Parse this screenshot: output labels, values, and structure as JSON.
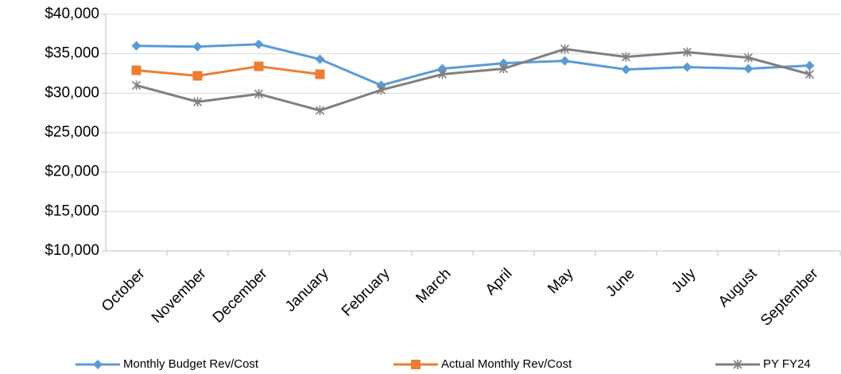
{
  "chart_data": {
    "type": "line",
    "categories": [
      "October",
      "November",
      "December",
      "January",
      "February",
      "March",
      "April",
      "May",
      "June",
      "July",
      "August",
      "September"
    ],
    "series": [
      {
        "name": "Monthly Budget Rev/Cost",
        "color": "#5b9bd5",
        "marker": "diamond",
        "values": [
          36000,
          35900,
          36200,
          34300,
          31000,
          33100,
          33800,
          34100,
          33000,
          33300,
          33100,
          33500
        ]
      },
      {
        "name": "Actual Monthly Rev/Cost",
        "color": "#ed7d31",
        "marker": "square",
        "values": [
          32900,
          32200,
          33400,
          32400,
          null,
          null,
          null,
          null,
          null,
          null,
          null,
          null
        ]
      },
      {
        "name": "PY FY24",
        "color": "#7f7f7f",
        "marker": "star",
        "values": [
          31000,
          28900,
          29900,
          27800,
          30400,
          32400,
          33100,
          35600,
          34600,
          35200,
          34500,
          32400
        ]
      }
    ],
    "ylim": [
      10000,
      40000
    ],
    "yticks": [
      {
        "value": 10000,
        "label": "$10,000"
      },
      {
        "value": 15000,
        "label": "$15,000"
      },
      {
        "value": 20000,
        "label": "$20,000"
      },
      {
        "value": 25000,
        "label": "$25,000"
      },
      {
        "value": 30000,
        "label": "$30,000"
      },
      {
        "value": 35000,
        "label": "$35,000"
      },
      {
        "value": 40000,
        "label": "$40,000"
      }
    ],
    "grid": true,
    "legend": "bottom"
  }
}
